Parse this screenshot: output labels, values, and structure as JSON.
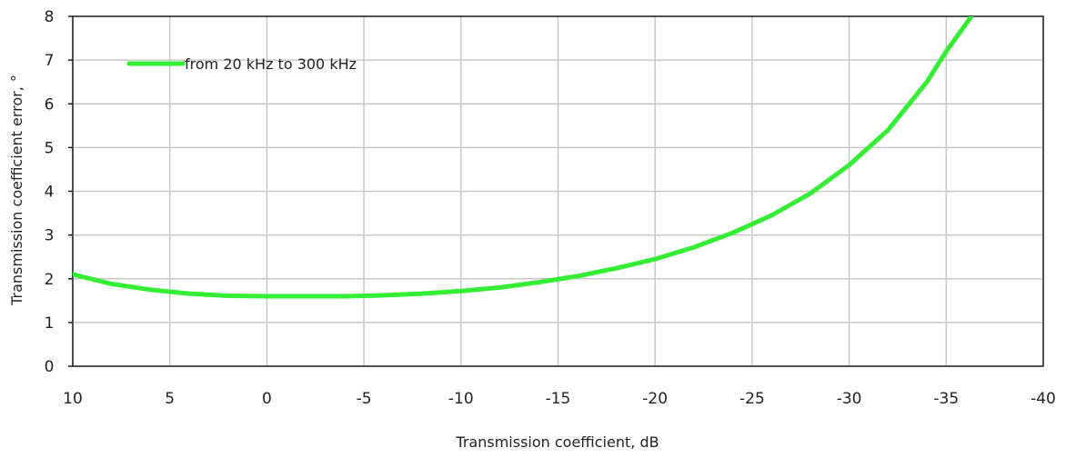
{
  "chart_data": {
    "type": "line",
    "title": "",
    "xlabel": "Transmission coefficient, dB",
    "ylabel": "Transmission coefficient error, °",
    "xlim": [
      10,
      -40
    ],
    "ylim": [
      0,
      8
    ],
    "x_ticks": [
      10,
      5,
      0,
      -5,
      -10,
      -15,
      -20,
      -25,
      -30,
      -35,
      -40
    ],
    "y_ticks": [
      0,
      1,
      2,
      3,
      4,
      5,
      6,
      7,
      8
    ],
    "grid": true,
    "legend_position": "top-left",
    "series": [
      {
        "name": "from 20 kHz to 300 kHz",
        "color": "#33ee33",
        "x": [
          10,
          8,
          6,
          4,
          2,
          0,
          -2,
          -4,
          -6,
          -8,
          -10,
          -12,
          -14,
          -16,
          -18,
          -20,
          -22,
          -24,
          -26,
          -28,
          -30,
          -32,
          -34,
          -35,
          -36.3
        ],
        "y": [
          2.1,
          1.88,
          1.75,
          1.66,
          1.61,
          1.6,
          1.6,
          1.6,
          1.62,
          1.66,
          1.72,
          1.8,
          1.92,
          2.06,
          2.24,
          2.45,
          2.72,
          3.05,
          3.45,
          3.95,
          4.6,
          5.4,
          6.5,
          7.2,
          8.0
        ]
      }
    ]
  }
}
